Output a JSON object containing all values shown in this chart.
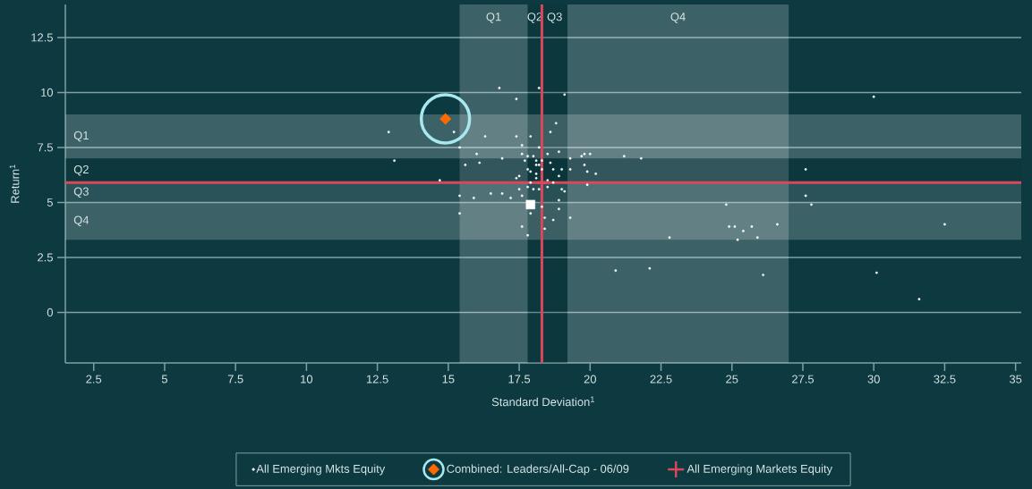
{
  "chart_data": {
    "type": "scatter",
    "xlabel": "Standard Deviation$^{1}$",
    "ylabel": "Return$^{1}$",
    "xlim": [
      1.5,
      35.2
    ],
    "ylim": [
      -2.3,
      14.0
    ],
    "xticks": [
      2.5,
      5,
      7.5,
      10,
      12.5,
      15,
      17.5,
      20,
      22.5,
      25,
      27.5,
      30,
      32.5,
      35
    ],
    "yticks": [
      0,
      2.5,
      5,
      7.5,
      10,
      12.5
    ],
    "grid": "y",
    "legend": "bottom",
    "ref_lines": [
      {
        "axis": "x",
        "value": 18.3,
        "color": "#d9485a"
      },
      {
        "axis": "y",
        "value": 5.9,
        "color": "#d9485a"
      }
    ],
    "bands": [
      {
        "axis": "x",
        "from": 15.4,
        "to": 17.8,
        "label": "Q1",
        "color": "#ffffff"
      },
      {
        "axis": "x",
        "from": 17.8,
        "to": 18.3,
        "label": "Q2",
        "color": "#0a2e33"
      },
      {
        "axis": "x",
        "from": 18.3,
        "to": 19.2,
        "label": "Q3",
        "color": "#0a2e33"
      },
      {
        "axis": "x",
        "from": 19.2,
        "to": 27.0,
        "label": "Q4",
        "color": "#ffffff"
      },
      {
        "axis": "y",
        "from": 7.0,
        "to": 9.0,
        "label": "Q1",
        "color": "#ffffff"
      },
      {
        "axis": "y",
        "from": 5.9,
        "to": 7.0,
        "label": "Q2",
        "color": "#0a2e33"
      },
      {
        "axis": "y",
        "from": 5.0,
        "to": 5.9,
        "label": "Q3",
        "color": "#9fb8ba"
      },
      {
        "axis": "y",
        "from": 3.3,
        "to": 5.0,
        "label": "Q4",
        "color": "#ffffff"
      }
    ],
    "series": [
      {
        "name": "All Emerging Mkts Equity",
        "marker": "circle",
        "color": "#ffffff",
        "x": [
          12.9,
          13.1,
          14.7,
          15.2,
          16.8,
          18.2,
          19.1,
          17.4,
          18.8,
          18.6,
          16.3,
          17.4,
          17.9,
          15.4,
          16.0,
          16.9,
          15.6,
          16.1,
          17.6,
          18.2,
          17.6,
          17.8,
          18.0,
          18.5,
          18.9,
          19.3,
          19.7,
          19.8,
          20.0,
          17.7,
          18.1,
          18.3,
          18.1,
          18.2,
          18.6,
          17.8,
          17.9,
          18.3,
          18.7,
          19.0,
          19.3,
          19.8,
          19.9,
          20.2,
          18.1,
          18.9,
          17.4,
          17.5,
          18.1,
          17.9,
          18.2,
          18.4,
          18.5,
          18.7,
          17.8,
          18.0,
          18.2,
          18.5,
          19.0,
          19.1,
          19.9,
          17.5,
          16.5,
          16.9,
          17.2,
          17.6,
          15.4,
          15.9,
          18.3,
          18.9,
          18.9,
          15.4,
          17.9,
          18.4,
          18.7,
          19.3,
          17.6,
          18.4,
          17.8,
          21.2,
          21.8,
          24.8,
          27.6,
          27.6,
          27.8,
          32.5,
          24.9,
          25.1,
          25.4,
          25.7,
          26.6,
          25.2,
          25.9,
          22.8,
          20.9,
          22.1,
          26.1,
          30.1,
          31.6,
          30.0
        ],
        "values": [
          8.2,
          6.9,
          6.0,
          8.2,
          10.2,
          10.2,
          9.9,
          9.7,
          8.6,
          8.2,
          8.0,
          8.0,
          8.0,
          7.5,
          7.2,
          7.0,
          6.7,
          6.8,
          7.6,
          7.5,
          7.2,
          7.1,
          7.1,
          7.2,
          7.3,
          7.0,
          7.1,
          7.2,
          7.2,
          6.9,
          6.9,
          6.9,
          6.7,
          6.7,
          6.8,
          6.5,
          6.4,
          6.5,
          6.5,
          6.5,
          6.5,
          6.7,
          6.4,
          6.3,
          6.3,
          6.2,
          6.1,
          6.2,
          6.1,
          5.9,
          null,
          5.9,
          6.0,
          5.9,
          5.7,
          5.6,
          5.6,
          5.7,
          5.6,
          5.5,
          5.8,
          5.6,
          5.4,
          5.4,
          5.2,
          5.3,
          5.3,
          5.2,
          4.8,
          4.7,
          5.1,
          4.5,
          4.5,
          4.3,
          4.2,
          4.3,
          3.9,
          3.8,
          3.5,
          7.1,
          7.0,
          4.9,
          6.5,
          5.3,
          4.9,
          4.0,
          3.9,
          3.9,
          3.7,
          3.9,
          4.0,
          3.3,
          3.4,
          3.4,
          1.9,
          2.0,
          1.7,
          1.8,
          0.6,
          9.8
        ]
      },
      {
        "name": "Combined: Leaders/All-Cap - 06/09",
        "marker": "diamond",
        "color": "#ff6a00",
        "x": [
          14.9
        ],
        "values": [
          8.8
        ]
      },
      {
        "marker": "square",
        "color": "#ffffff",
        "x": [
          17.9
        ],
        "values": [
          4.9
        ]
      },
      {
        "name": "All Emerging Markets Equity",
        "marker": "cross",
        "color": "#d9485a",
        "x": [
          18.3
        ],
        "values": [
          5.9
        ]
      }
    ]
  }
}
